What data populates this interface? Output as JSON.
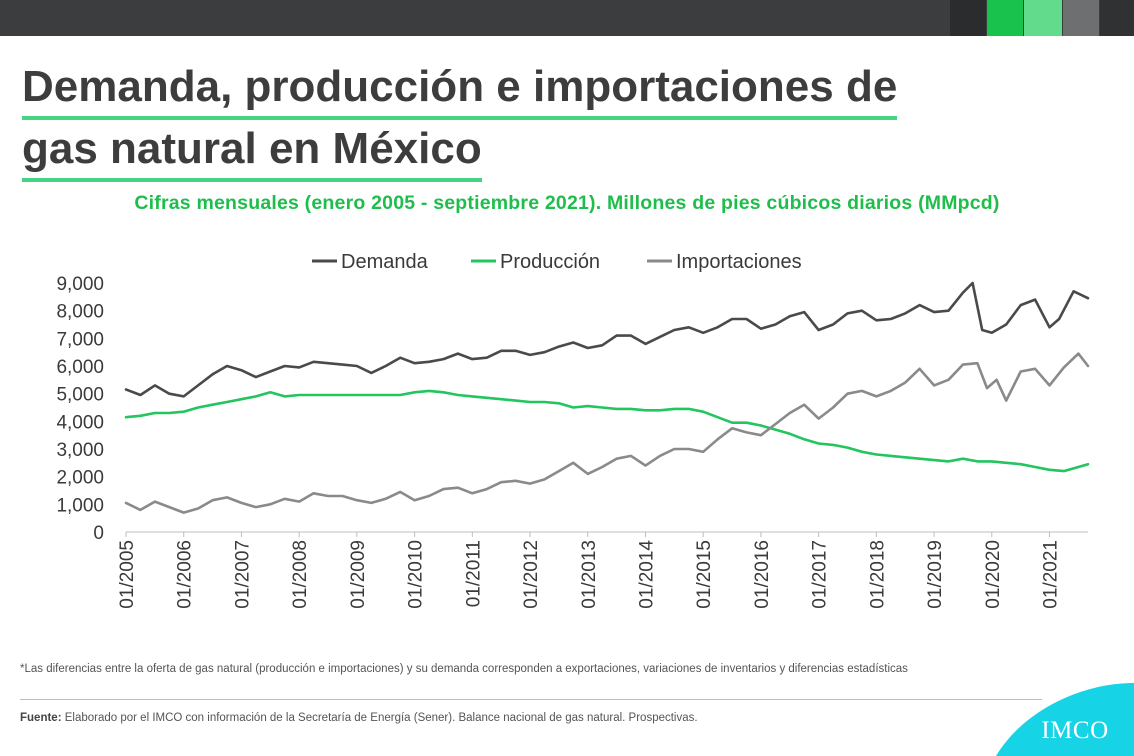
{
  "header": {
    "title_line1": "Demanda, producción e importaciones de",
    "title_line2": "gas natural en México",
    "subtitle": "Cifras mensuales  (enero 2005  - septiembre  2021).  Millones de pies cúbicos diarios (MMpcd)"
  },
  "colors": {
    "demanda": "#4a4a4a",
    "produccion": "#22c55e",
    "importaciones": "#8a8a8a",
    "topbar": "#3b3d3f",
    "accent_green": "#1fbe4c",
    "logo_bg": "#16d4e6"
  },
  "chart_data": {
    "type": "line",
    "ylim": [
      0,
      9000
    ],
    "yticks": [
      "0",
      "1,000",
      "2,000",
      "3,000",
      "4,000",
      "5,000",
      "6,000",
      "7,000",
      "8,000",
      "9,000"
    ],
    "x_tick_labels": [
      "01/2005",
      "01/2006",
      "01/2007",
      "01/2008",
      "01/2009",
      "01/2010",
      "01/2011",
      "01/2012",
      "01/2013",
      "01/2014",
      "01/2015",
      "01/2016",
      "01/2017",
      "01/2018",
      "01/2019",
      "01/2020",
      "01/2021"
    ],
    "x_start": "2005-01",
    "x_end": "2021-09",
    "legend_position": "top-center",
    "grid": false,
    "series": [
      {
        "name": "Demanda",
        "color": "#4a4a4a",
        "points": [
          [
            "2005-01",
            5150
          ],
          [
            "2005-04",
            4950
          ],
          [
            "2005-07",
            5300
          ],
          [
            "2005-10",
            5000
          ],
          [
            "2006-01",
            4900
          ],
          [
            "2006-04",
            5300
          ],
          [
            "2006-07",
            5700
          ],
          [
            "2006-10",
            6000
          ],
          [
            "2007-01",
            5850
          ],
          [
            "2007-04",
            5600
          ],
          [
            "2007-07",
            5800
          ],
          [
            "2007-10",
            6000
          ],
          [
            "2008-01",
            5950
          ],
          [
            "2008-04",
            6150
          ],
          [
            "2008-07",
            6100
          ],
          [
            "2008-10",
            6050
          ],
          [
            "2009-01",
            6000
          ],
          [
            "2009-04",
            5750
          ],
          [
            "2009-07",
            6000
          ],
          [
            "2009-10",
            6300
          ],
          [
            "2010-01",
            6100
          ],
          [
            "2010-04",
            6150
          ],
          [
            "2010-07",
            6250
          ],
          [
            "2010-10",
            6450
          ],
          [
            "2011-01",
            6250
          ],
          [
            "2011-04",
            6300
          ],
          [
            "2011-07",
            6550
          ],
          [
            "2011-10",
            6550
          ],
          [
            "2012-01",
            6400
          ],
          [
            "2012-04",
            6500
          ],
          [
            "2012-07",
            6700
          ],
          [
            "2012-10",
            6850
          ],
          [
            "2013-01",
            6650
          ],
          [
            "2013-04",
            6750
          ],
          [
            "2013-07",
            7100
          ],
          [
            "2013-10",
            7100
          ],
          [
            "2014-01",
            6800
          ],
          [
            "2014-04",
            7050
          ],
          [
            "2014-07",
            7300
          ],
          [
            "2014-10",
            7400
          ],
          [
            "2015-01",
            7200
          ],
          [
            "2015-04",
            7400
          ],
          [
            "2015-07",
            7700
          ],
          [
            "2015-10",
            7700
          ],
          [
            "2016-01",
            7350
          ],
          [
            "2016-04",
            7500
          ],
          [
            "2016-07",
            7800
          ],
          [
            "2016-10",
            7950
          ],
          [
            "2017-01",
            7300
          ],
          [
            "2017-04",
            7500
          ],
          [
            "2017-07",
            7900
          ],
          [
            "2017-10",
            8000
          ],
          [
            "2018-01",
            7650
          ],
          [
            "2018-04",
            7700
          ],
          [
            "2018-07",
            7900
          ],
          [
            "2018-10",
            8200
          ],
          [
            "2019-01",
            7950
          ],
          [
            "2019-04",
            8000
          ],
          [
            "2019-07",
            8650
          ],
          [
            "2019-09",
            9000
          ],
          [
            "2019-11",
            7300
          ],
          [
            "2020-01",
            7200
          ],
          [
            "2020-04",
            7500
          ],
          [
            "2020-07",
            8200
          ],
          [
            "2020-10",
            8400
          ],
          [
            "2021-01",
            7400
          ],
          [
            "2021-03",
            7700
          ],
          [
            "2021-06",
            8700
          ],
          [
            "2021-09",
            8450
          ]
        ]
      },
      {
        "name": "Producción",
        "color": "#22c55e",
        "points": [
          [
            "2005-01",
            4150
          ],
          [
            "2005-04",
            4200
          ],
          [
            "2005-07",
            4300
          ],
          [
            "2005-10",
            4300
          ],
          [
            "2006-01",
            4350
          ],
          [
            "2006-04",
            4500
          ],
          [
            "2006-07",
            4600
          ],
          [
            "2006-10",
            4700
          ],
          [
            "2007-01",
            4800
          ],
          [
            "2007-04",
            4900
          ],
          [
            "2007-07",
            5050
          ],
          [
            "2007-10",
            4900
          ],
          [
            "2008-01",
            4950
          ],
          [
            "2008-04",
            4950
          ],
          [
            "2008-07",
            4950
          ],
          [
            "2008-10",
            4950
          ],
          [
            "2009-01",
            4950
          ],
          [
            "2009-04",
            4950
          ],
          [
            "2009-07",
            4950
          ],
          [
            "2009-10",
            4950
          ],
          [
            "2010-01",
            5050
          ],
          [
            "2010-04",
            5100
          ],
          [
            "2010-07",
            5050
          ],
          [
            "2010-10",
            4950
          ],
          [
            "2011-01",
            4900
          ],
          [
            "2011-04",
            4850
          ],
          [
            "2011-07",
            4800
          ],
          [
            "2011-10",
            4750
          ],
          [
            "2012-01",
            4700
          ],
          [
            "2012-04",
            4700
          ],
          [
            "2012-07",
            4650
          ],
          [
            "2012-10",
            4500
          ],
          [
            "2013-01",
            4550
          ],
          [
            "2013-04",
            4500
          ],
          [
            "2013-07",
            4450
          ],
          [
            "2013-10",
            4450
          ],
          [
            "2014-01",
            4400
          ],
          [
            "2014-04",
            4400
          ],
          [
            "2014-07",
            4450
          ],
          [
            "2014-10",
            4450
          ],
          [
            "2015-01",
            4350
          ],
          [
            "2015-04",
            4150
          ],
          [
            "2015-07",
            3950
          ],
          [
            "2015-10",
            3950
          ],
          [
            "2016-01",
            3850
          ],
          [
            "2016-04",
            3700
          ],
          [
            "2016-07",
            3550
          ],
          [
            "2016-10",
            3350
          ],
          [
            "2017-01",
            3200
          ],
          [
            "2017-04",
            3150
          ],
          [
            "2017-07",
            3050
          ],
          [
            "2017-10",
            2900
          ],
          [
            "2018-01",
            2800
          ],
          [
            "2018-04",
            2750
          ],
          [
            "2018-07",
            2700
          ],
          [
            "2018-10",
            2650
          ],
          [
            "2019-01",
            2600
          ],
          [
            "2019-04",
            2550
          ],
          [
            "2019-07",
            2650
          ],
          [
            "2019-10",
            2550
          ],
          [
            "2020-01",
            2550
          ],
          [
            "2020-04",
            2500
          ],
          [
            "2020-07",
            2450
          ],
          [
            "2020-10",
            2350
          ],
          [
            "2021-01",
            2250
          ],
          [
            "2021-04",
            2200
          ],
          [
            "2021-07",
            2350
          ],
          [
            "2021-09",
            2450
          ]
        ]
      },
      {
        "name": "Importaciones",
        "color": "#8a8a8a",
        "points": [
          [
            "2005-01",
            1050
          ],
          [
            "2005-04",
            800
          ],
          [
            "2005-07",
            1100
          ],
          [
            "2005-10",
            900
          ],
          [
            "2006-01",
            700
          ],
          [
            "2006-04",
            850
          ],
          [
            "2006-07",
            1150
          ],
          [
            "2006-10",
            1250
          ],
          [
            "2007-01",
            1050
          ],
          [
            "2007-04",
            900
          ],
          [
            "2007-07",
            1000
          ],
          [
            "2007-10",
            1200
          ],
          [
            "2008-01",
            1100
          ],
          [
            "2008-04",
            1400
          ],
          [
            "2008-07",
            1300
          ],
          [
            "2008-10",
            1300
          ],
          [
            "2009-01",
            1150
          ],
          [
            "2009-04",
            1050
          ],
          [
            "2009-07",
            1200
          ],
          [
            "2009-10",
            1450
          ],
          [
            "2010-01",
            1150
          ],
          [
            "2010-04",
            1300
          ],
          [
            "2010-07",
            1550
          ],
          [
            "2010-10",
            1600
          ],
          [
            "2011-01",
            1400
          ],
          [
            "2011-04",
            1550
          ],
          [
            "2011-07",
            1800
          ],
          [
            "2011-10",
            1850
          ],
          [
            "2012-01",
            1750
          ],
          [
            "2012-04",
            1900
          ],
          [
            "2012-07",
            2200
          ],
          [
            "2012-10",
            2500
          ],
          [
            "2013-01",
            2100
          ],
          [
            "2013-04",
            2350
          ],
          [
            "2013-07",
            2650
          ],
          [
            "2013-10",
            2750
          ],
          [
            "2014-01",
            2400
          ],
          [
            "2014-04",
            2750
          ],
          [
            "2014-07",
            3000
          ],
          [
            "2014-10",
            3000
          ],
          [
            "2015-01",
            2900
          ],
          [
            "2015-04",
            3350
          ],
          [
            "2015-07",
            3750
          ],
          [
            "2015-10",
            3600
          ],
          [
            "2016-01",
            3500
          ],
          [
            "2016-04",
            3900
          ],
          [
            "2016-07",
            4300
          ],
          [
            "2016-10",
            4600
          ],
          [
            "2017-01",
            4100
          ],
          [
            "2017-04",
            4500
          ],
          [
            "2017-07",
            5000
          ],
          [
            "2017-10",
            5100
          ],
          [
            "2018-01",
            4900
          ],
          [
            "2018-04",
            5100
          ],
          [
            "2018-07",
            5400
          ],
          [
            "2018-10",
            5900
          ],
          [
            "2019-01",
            5300
          ],
          [
            "2019-04",
            5500
          ],
          [
            "2019-07",
            6050
          ],
          [
            "2019-10",
            6100
          ],
          [
            "2019-12",
            5200
          ],
          [
            "2020-02",
            5500
          ],
          [
            "2020-04",
            4750
          ],
          [
            "2020-07",
            5800
          ],
          [
            "2020-10",
            5900
          ],
          [
            "2021-01",
            5300
          ],
          [
            "2021-04",
            5950
          ],
          [
            "2021-07",
            6450
          ],
          [
            "2021-09",
            6000
          ]
        ]
      }
    ]
  },
  "footer": {
    "note": "*Las diferencias  entre  la oferta  de gas natural  (producción  e importaciones)  y su demanda  corresponden  a exportaciones,  variaciones  de inventarios  y diferencias estadísticas",
    "source_label": "Fuente:",
    "source_text": " Elaborado  por el IMCO con información  de la Secretaría  de Energía  (Sener).  Balance  nacional  de gas natural.  Prospectivas."
  },
  "logo": {
    "text": "IMCO"
  }
}
